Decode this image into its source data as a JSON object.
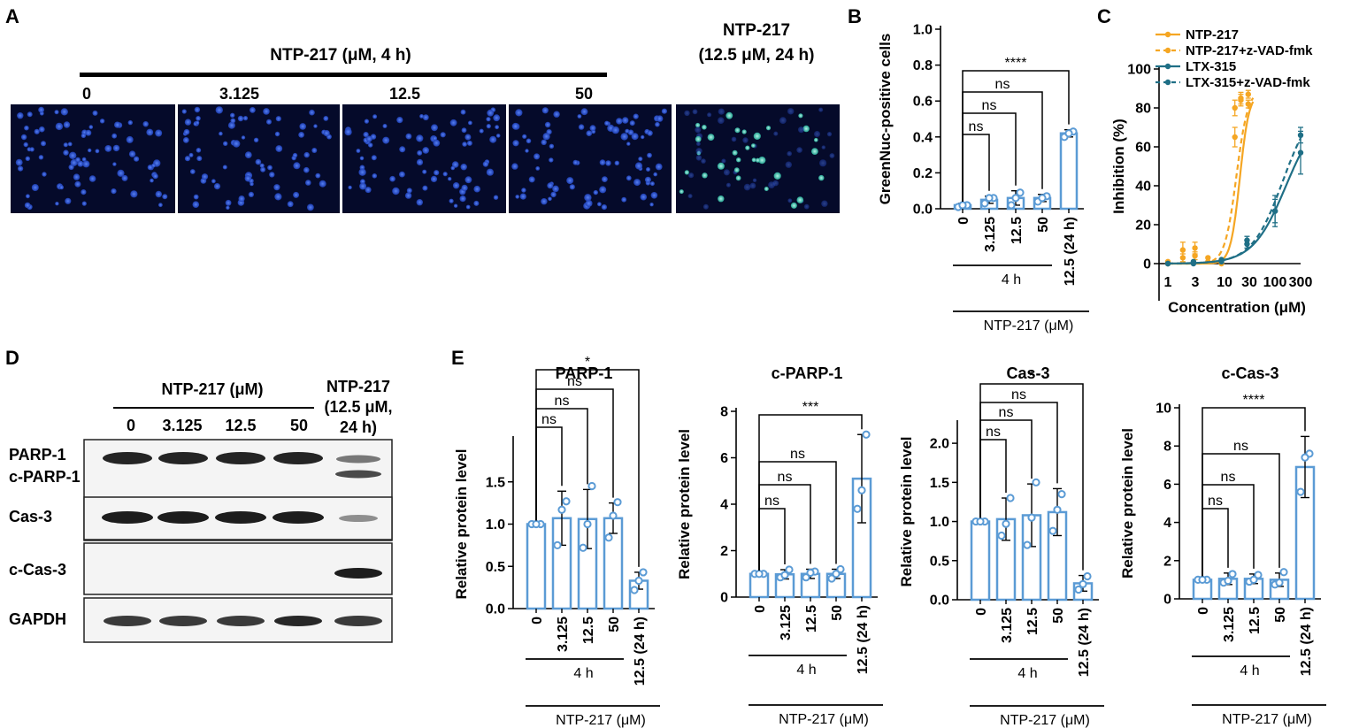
{
  "panels": {
    "A": {
      "label": "A",
      "header": "NTP-217 (μM, 4 h)",
      "conditions": [
        "0",
        "3.125",
        "12.5",
        "50"
      ],
      "extra_header": [
        "NTP-217",
        "(12.5 μM, 24 h)"
      ]
    },
    "B": {
      "label": "B"
    },
    "C": {
      "label": "C"
    },
    "D": {
      "label": "D",
      "header": "NTP-217 (μM)",
      "lanes": [
        "0",
        "3.125",
        "12.5",
        "50"
      ],
      "extra_header": [
        "NTP-217",
        "(12.5 μM,",
        "24 h)"
      ],
      "rows": [
        "PARP-1",
        "c-PARP-1",
        "Cas-3",
        "c-Cas-3",
        "GAPDH"
      ]
    },
    "E": {
      "label": "E"
    }
  },
  "colors": {
    "bar": "#5b9bd5",
    "orange": "#f5a623",
    "teal": "#1f6f86",
    "image_bg": "#050a2a",
    "nuclei": "#2a56d8",
    "green_nuclei": "#4fe0c0"
  },
  "chart_data": [
    {
      "id": "B",
      "type": "bar",
      "categories": [
        "0",
        "3.125",
        "12.5",
        "50",
        "12.5 (24 h)"
      ],
      "values": [
        0.02,
        0.05,
        0.06,
        0.06,
        0.42
      ],
      "errors": [
        0.01,
        0.02,
        0.04,
        0.02,
        0.02
      ],
      "points": [
        [
          0.01,
          0.02,
          0.02
        ],
        [
          0.03,
          0.06,
          0.06
        ],
        [
          0.02,
          0.09,
          0.06
        ],
        [
          0.04,
          0.07,
          0.06
        ],
        [
          0.4,
          0.43,
          0.42
        ]
      ],
      "title": "",
      "ylabel": "GreenNuc-positive cells",
      "ylim": [
        0,
        1.0
      ],
      "yticks": [
        "0.0",
        "0.2",
        "0.4",
        "0.6",
        "0.8",
        "1.0"
      ],
      "group_label": "4 h",
      "xlabel": "NTP-217 (μM)",
      "comparisons": [
        {
          "from": 0,
          "to": 1,
          "label": "ns"
        },
        {
          "from": 0,
          "to": 2,
          "label": "ns"
        },
        {
          "from": 0,
          "to": 3,
          "label": "ns"
        },
        {
          "from": 0,
          "to": 4,
          "label": "****"
        }
      ]
    },
    {
      "id": "C",
      "type": "line",
      "xscale": "log",
      "xlim": [
        1,
        300
      ],
      "ylim": [
        0,
        100
      ],
      "xticks": [
        "1",
        "3",
        "10",
        "30",
        "100",
        "300"
      ],
      "yticks": [
        "0",
        "20",
        "40",
        "60",
        "80",
        "100"
      ],
      "xlabel": "Concentration (μM)",
      "ylabel": "Inhibition (%)",
      "legend_position": "top",
      "series": [
        {
          "name": "NTP-217",
          "dashed": false,
          "color": "orange",
          "x": [
            1,
            1.9,
            3.2,
            5.6,
            10,
            17.8,
            23,
            31.6
          ],
          "y": [
            0,
            7,
            8,
            1,
            0,
            80,
            84,
            82
          ],
          "err": [
            0,
            4,
            3,
            0,
            0,
            4,
            3,
            2
          ],
          "fit": {
            "top": 88,
            "ec50": 22,
            "hill": 5
          }
        },
        {
          "name": "NTP-217+z-VAD-fmk",
          "dashed": true,
          "color": "orange",
          "x": [
            1,
            1.9,
            3.2,
            5.6,
            10,
            17.8,
            23,
            31.6
          ],
          "y": [
            1,
            3,
            4,
            3,
            2,
            65,
            85,
            87
          ],
          "err": [
            0,
            2,
            2,
            0,
            0,
            5,
            3,
            2
          ],
          "fit": {
            "top": 90,
            "ec50": 19,
            "hill": 4
          }
        },
        {
          "name": "LTX-315",
          "dashed": false,
          "color": "teal",
          "x": [
            1,
            3,
            10,
            30,
            100,
            300
          ],
          "y": [
            0,
            0,
            1,
            10,
            27,
            57
          ],
          "err": [
            0,
            0,
            0,
            2,
            8,
            11
          ],
          "fit": {
            "top": 80,
            "ec50": 160,
            "hill": 1.4
          }
        },
        {
          "name": "LTX-315+z-VAD-fmk",
          "dashed": true,
          "color": "teal",
          "x": [
            1,
            3,
            10,
            30,
            100,
            300
          ],
          "y": [
            0,
            1,
            2,
            12,
            27,
            66
          ],
          "err": [
            0,
            0,
            0,
            2,
            6,
            4
          ],
          "fit": {
            "top": 85,
            "ec50": 140,
            "hill": 1.5
          }
        }
      ]
    },
    {
      "id": "E1",
      "type": "bar",
      "title": "PARP-1",
      "categories": [
        "0",
        "3.125",
        "12.5",
        "50",
        "12.5 (24 h)"
      ],
      "values": [
        1.0,
        1.07,
        1.06,
        1.07,
        0.33
      ],
      "errors": [
        0.0,
        0.32,
        0.35,
        0.18,
        0.1
      ],
      "points": [
        [
          1.0,
          1.0,
          1.0
        ],
        [
          0.75,
          1.27,
          1.17
        ],
        [
          0.72,
          1.45,
          1.0
        ],
        [
          0.84,
          1.26,
          1.1
        ],
        [
          0.22,
          0.43,
          0.33
        ]
      ],
      "ylabel": "Relative protein level",
      "ylim": [
        0,
        2.0
      ],
      "yticks": [
        "0.0",
        "0.5",
        "1.0",
        "1.5"
      ],
      "group_label": "4 h",
      "xlabel": "NTP-217 (μM)",
      "comparisons": [
        {
          "from": 0,
          "to": 1,
          "label": "ns"
        },
        {
          "from": 0,
          "to": 2,
          "label": "ns"
        },
        {
          "from": 0,
          "to": 3,
          "label": "ns"
        },
        {
          "from": 0,
          "to": 4,
          "label": "*"
        }
      ]
    },
    {
      "id": "E2",
      "type": "bar",
      "title": "c-PARP-1",
      "categories": [
        "0",
        "3.125",
        "12.5",
        "50",
        "12.5 (24 h)"
      ],
      "values": [
        1.0,
        0.98,
        1.0,
        1.0,
        5.1
      ],
      "errors": [
        0.0,
        0.2,
        0.2,
        0.2,
        1.9
      ],
      "points": [
        [
          1.0,
          1.0,
          1.0
        ],
        [
          0.85,
          1.18,
          0.95
        ],
        [
          0.85,
          1.1,
          1.05
        ],
        [
          0.8,
          1.2,
          1.0
        ],
        [
          3.8,
          7.0,
          4.6
        ]
      ],
      "ylabel": "Relative protein level",
      "ylim": [
        0,
        8
      ],
      "yticks": [
        "0",
        "2",
        "4",
        "6",
        "8"
      ],
      "group_label": "4 h",
      "xlabel": "NTP-217 (μM)",
      "comparisons": [
        {
          "from": 0,
          "to": 1,
          "label": "ns"
        },
        {
          "from": 0,
          "to": 2,
          "label": "ns"
        },
        {
          "from": 0,
          "to": 3,
          "label": "ns"
        },
        {
          "from": 0,
          "to": 4,
          "label": "***"
        }
      ]
    },
    {
      "id": "E3",
      "type": "bar",
      "title": "Cas-3",
      "categories": [
        "0",
        "3.125",
        "12.5",
        "50",
        "12.5 (24 h)"
      ],
      "values": [
        1.0,
        1.03,
        1.08,
        1.12,
        0.21
      ],
      "errors": [
        0.0,
        0.27,
        0.4,
        0.3,
        0.1
      ],
      "points": [
        [
          1.0,
          1.0,
          1.0
        ],
        [
          0.82,
          1.3,
          0.97
        ],
        [
          0.7,
          1.5,
          1.05
        ],
        [
          0.88,
          1.35,
          1.15
        ],
        [
          0.13,
          0.3,
          0.2
        ]
      ],
      "ylabel": "Relative protein level",
      "ylim": [
        0,
        2.25
      ],
      "yticks": [
        "0.0",
        "0.5",
        "1.0",
        "1.5",
        "2.0"
      ],
      "group_label": "4 h",
      "xlabel": "NTP-217 (μM)",
      "comparisons": [
        {
          "from": 0,
          "to": 1,
          "label": "ns"
        },
        {
          "from": 0,
          "to": 2,
          "label": "ns"
        },
        {
          "from": 0,
          "to": 3,
          "label": "ns"
        },
        {
          "from": 0,
          "to": 4,
          "label": "*"
        }
      ]
    },
    {
      "id": "E4",
      "type": "bar",
      "title": "c-Cas-3",
      "categories": [
        "0",
        "3.125",
        "12.5",
        "50",
        "12.5 (24 h)"
      ],
      "values": [
        1.0,
        1.05,
        1.05,
        1.0,
        6.9
      ],
      "errors": [
        0.0,
        0.3,
        0.25,
        0.35,
        1.6
      ],
      "points": [
        [
          1.0,
          1.0,
          1.0
        ],
        [
          0.85,
          1.3,
          0.95
        ],
        [
          0.9,
          1.25,
          1.0
        ],
        [
          0.75,
          1.4,
          0.85
        ],
        [
          5.6,
          7.6,
          7.4
        ]
      ],
      "ylabel": "Relative protein level",
      "ylim": [
        0,
        10
      ],
      "yticks": [
        "0",
        "2",
        "4",
        "6",
        "8",
        "10"
      ],
      "group_label": "4 h",
      "xlabel": "NTP-217 (μM)",
      "comparisons": [
        {
          "from": 0,
          "to": 1,
          "label": "ns"
        },
        {
          "from": 0,
          "to": 2,
          "label": "ns"
        },
        {
          "from": 0,
          "to": 3,
          "label": "ns"
        },
        {
          "from": 0,
          "to": 4,
          "label": "****"
        }
      ]
    }
  ]
}
